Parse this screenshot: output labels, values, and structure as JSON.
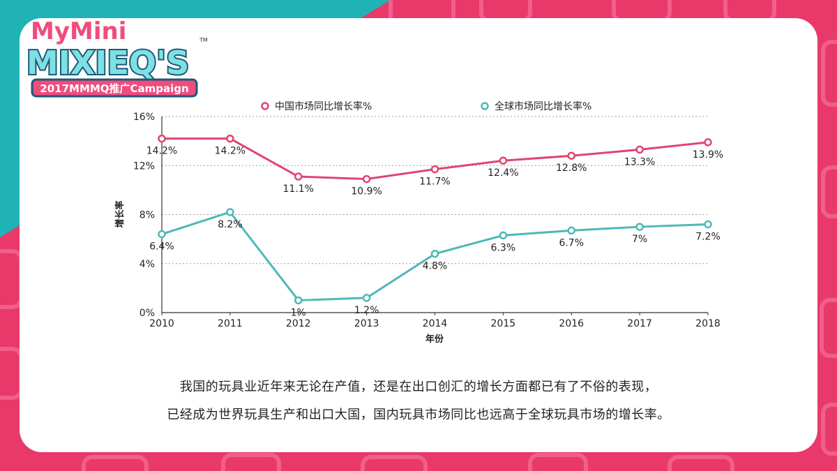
{
  "brand": {
    "logo_line1": "MyMini",
    "logo_line2": "MIXIEQ'S",
    "logo_tm": "TM",
    "campaign": "2017MMMQ推广Campaign"
  },
  "colors": {
    "background": "#e8396a",
    "pattern": "#f2668f",
    "teal_corner": "#1fb3b5",
    "china_series": "#e0456f",
    "global_series": "#4fb8b6",
    "grid": "#9a9a9a",
    "axis": "#333333"
  },
  "chart_data": {
    "type": "line",
    "x": [
      "2010",
      "2011",
      "2012",
      "2013",
      "2014",
      "2015",
      "2016",
      "2017",
      "2018"
    ],
    "xlabel": "年份",
    "ylabel": "增长率",
    "ylim": [
      0,
      16
    ],
    "yticks": [
      0,
      4,
      8,
      12,
      16
    ],
    "ytick_labels": [
      "0%",
      "4%",
      "8%",
      "12%",
      "16%"
    ],
    "grid": "horizontal dashed",
    "legend_position": "top",
    "series": [
      {
        "name": "中国市场同比增长率%",
        "color": "#e0456f",
        "values": [
          14.2,
          14.2,
          11.1,
          10.9,
          11.7,
          12.4,
          12.8,
          13.3,
          13.9
        ],
        "labels": [
          "14.2%",
          "14.2%",
          "11.1%",
          "10.9%",
          "11.7%",
          "12.4%",
          "12.8%",
          "13.3%",
          "13.9%"
        ]
      },
      {
        "name": "全球市场同比增长率%",
        "color": "#4fb8b6",
        "values": [
          6.4,
          8.2,
          1,
          1.2,
          4.8,
          6.3,
          6.7,
          7,
          7.2
        ],
        "labels": [
          "6.4%",
          "8.2%",
          "1%",
          "1.2%",
          "4.8%",
          "6.3%",
          "6.7%",
          "7%",
          "7.2%"
        ]
      }
    ]
  },
  "caption": {
    "line1": "我国的玩具业近年来无论在产值，还是在出口创汇的增长方面都已有了不俗的表现，",
    "line2": "已经成为世界玩具生产和出口大国，国内玩具市场同比也远高于全球玩具市场的增长率。"
  }
}
